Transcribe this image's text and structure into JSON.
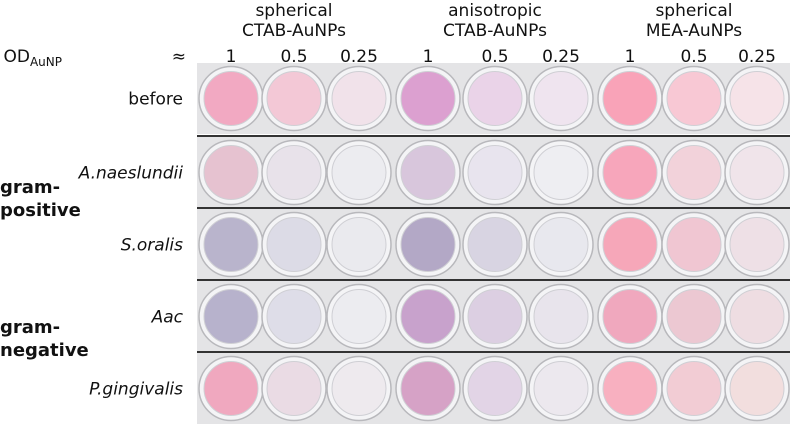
{
  "header": {
    "groups": [
      {
        "lines": [
          "spherical",
          "CTAB-AuNPs"
        ]
      },
      {
        "lines": [
          "anisotropic",
          "CTAB-AuNPs"
        ]
      },
      {
        "lines": [
          "spherical",
          "MEA-AuNPs"
        ]
      }
    ],
    "od_label": {
      "main": "OD",
      "sub": "AuNP",
      "approx": "≈"
    },
    "concentrations": [
      1,
      0.5,
      0.25,
      1,
      0.5,
      0.25,
      1,
      0.5,
      0.25
    ]
  },
  "rows": [
    {
      "label": "before"
    },
    {
      "label": "A.naeslundii"
    },
    {
      "label": "S.oralis"
    },
    {
      "label": "Aac"
    },
    {
      "label": "P.gingivalis"
    }
  ],
  "groups": [
    {
      "lines": [
        "gram-",
        "positive"
      ]
    },
    {
      "lines": [
        "gram-",
        "negative"
      ]
    }
  ]
}
